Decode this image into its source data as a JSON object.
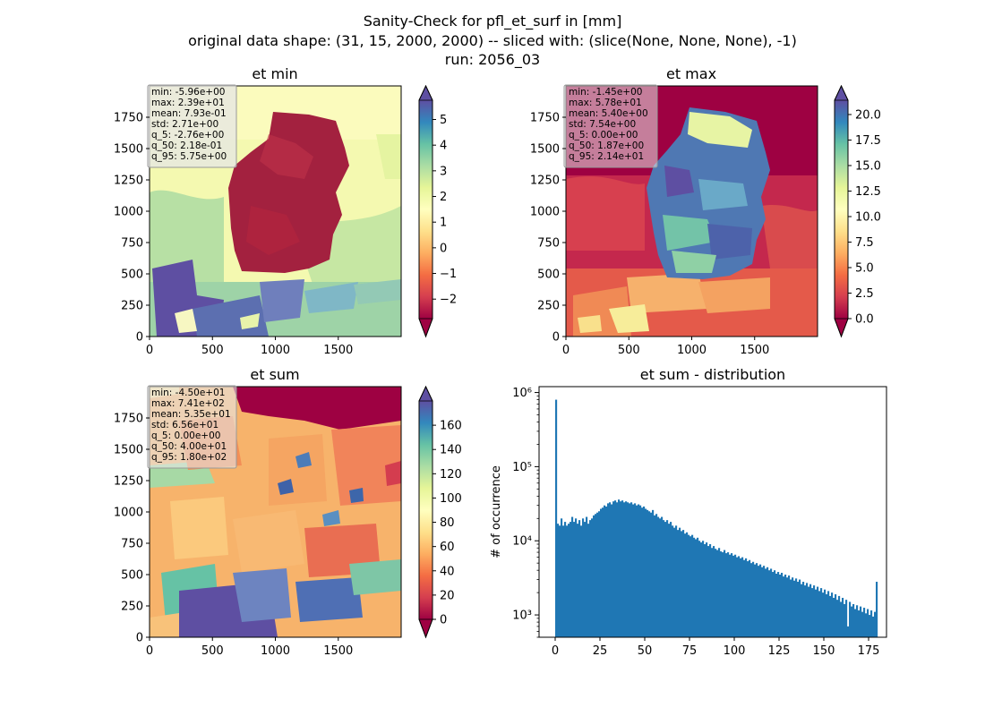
{
  "figure": {
    "suptitle_lines": [
      "Sanity-Check for pfl_et_surf in [mm]",
      "original data shape: (31, 15, 2000, 2000) -- sliced with: (slice(None, None, None), -1)",
      "run: 2056_03"
    ]
  },
  "chart_data": [
    {
      "type": "heatmap",
      "title": "et min",
      "x_ticks": [
        0,
        500,
        1000,
        1500
      ],
      "y_ticks": [
        0,
        250,
        500,
        750,
        1000,
        1250,
        1500,
        1750
      ],
      "xlim": [
        0,
        2000
      ],
      "ylim": [
        0,
        2000
      ],
      "colorbar": {
        "ticks": [
          -2,
          -1,
          0,
          1,
          2,
          3,
          4,
          5
        ],
        "range": [
          -2.76,
          5.75
        ],
        "cmap": "Spectral",
        "extend": "both"
      },
      "stats": [
        "min: -5.96e+00",
        "max: 2.39e+01",
        "mean: 7.93e-01",
        "std: 2.71e+00",
        "q_5: -2.76e+00",
        "q_50: 2.18e-01",
        "q_95: 5.75e+00"
      ]
    },
    {
      "type": "heatmap",
      "title": "et max",
      "x_ticks": [
        0,
        500,
        1000,
        1500
      ],
      "y_ticks": [
        0,
        250,
        500,
        750,
        1000,
        1250,
        1500,
        1750
      ],
      "xlim": [
        0,
        2000
      ],
      "ylim": [
        0,
        2000
      ],
      "colorbar": {
        "ticks": [
          "0.0",
          "2.5",
          "5.0",
          "7.5",
          "10.0",
          "12.5",
          "15.0",
          "17.5",
          "20.0"
        ],
        "range": [
          0,
          21.4
        ],
        "cmap": "Spectral",
        "extend": "both"
      },
      "stats": [
        "min: -1.45e+00",
        "max: 5.78e+01",
        "mean: 5.40e+00",
        "std: 7.54e+00",
        "q_5: 0.00e+00",
        "q_50: 1.87e+00",
        "q_95: 2.14e+01"
      ]
    },
    {
      "type": "heatmap",
      "title": "et sum",
      "x_ticks": [
        0,
        500,
        1000,
        1500
      ],
      "y_ticks": [
        0,
        250,
        500,
        750,
        1000,
        1250,
        1500,
        1750
      ],
      "xlim": [
        0,
        2000
      ],
      "ylim": [
        0,
        2000
      ],
      "colorbar": {
        "ticks": [
          0,
          20,
          40,
          60,
          80,
          100,
          120,
          140,
          160
        ],
        "range": [
          0,
          180
        ],
        "cmap": "Spectral",
        "extend": "both"
      },
      "stats": [
        "min: -4.50e+01",
        "max: 7.41e+02",
        "mean: 5.35e+01",
        "std: 6.56e+01",
        "q_5: 0.00e+00",
        "q_50: 4.00e+01",
        "q_95: 1.80e+02"
      ]
    },
    {
      "type": "bar",
      "title": "et sum - distribution",
      "ylabel": "# of occurrence",
      "y_scale": "log",
      "x_ticks": [
        0,
        25,
        50,
        75,
        100,
        125,
        150,
        175
      ],
      "y_ticks": [
        "10³",
        "10⁴",
        "10⁵",
        "10⁶"
      ],
      "xlim": [
        -9,
        185
      ],
      "ylim": [
        500,
        1200000
      ],
      "bar_color": "#1f77b4",
      "bin_width": 1,
      "bins": [
        [
          0,
          800000
        ],
        [
          1,
          17000
        ],
        [
          2,
          16000
        ],
        [
          3,
          20000
        ],
        [
          4,
          16000
        ],
        [
          5,
          18000
        ],
        [
          6,
          16000
        ],
        [
          7,
          17000
        ],
        [
          8,
          18000
        ],
        [
          9,
          21000
        ],
        [
          10,
          18000
        ],
        [
          11,
          20000
        ],
        [
          12,
          17000
        ],
        [
          13,
          19000
        ],
        [
          14,
          16000
        ],
        [
          15,
          20000
        ],
        [
          16,
          18000
        ],
        [
          17,
          21000
        ],
        [
          18,
          17000
        ],
        [
          19,
          19000
        ],
        [
          20,
          20000
        ],
        [
          21,
          22000
        ],
        [
          22,
          23000
        ],
        [
          23,
          24000
        ],
        [
          24,
          25000
        ],
        [
          25,
          27000
        ],
        [
          26,
          28000
        ],
        [
          27,
          30000
        ],
        [
          28,
          29000
        ],
        [
          29,
          32000
        ],
        [
          30,
          33000
        ],
        [
          31,
          31000
        ],
        [
          32,
          34000
        ],
        [
          33,
          35000
        ],
        [
          34,
          33000
        ],
        [
          35,
          36000
        ],
        [
          36,
          34000
        ],
        [
          37,
          35000
        ],
        [
          38,
          33000
        ],
        [
          39,
          34000
        ],
        [
          40,
          33000
        ],
        [
          41,
          32000
        ],
        [
          42,
          33000
        ],
        [
          43,
          31000
        ],
        [
          44,
          32000
        ],
        [
          45,
          30000
        ],
        [
          46,
          31000
        ],
        [
          47,
          30000
        ],
        [
          48,
          28000
        ],
        [
          49,
          29000
        ],
        [
          50,
          27000
        ],
        [
          51,
          26000
        ],
        [
          52,
          25000
        ],
        [
          53,
          24000
        ],
        [
          54,
          26000
        ],
        [
          55,
          22000
        ],
        [
          56,
          23000
        ],
        [
          57,
          21000
        ],
        [
          58,
          20000
        ],
        [
          59,
          21000
        ],
        [
          60,
          19000
        ],
        [
          61,
          18000
        ],
        [
          62,
          19000
        ],
        [
          63,
          17000
        ],
        [
          64,
          18000
        ],
        [
          65,
          16000
        ],
        [
          66,
          15000
        ],
        [
          67,
          16000
        ],
        [
          68,
          14000
        ],
        [
          69,
          15000
        ],
        [
          70,
          13500
        ],
        [
          71,
          14000
        ],
        [
          72,
          12500
        ],
        [
          73,
          13000
        ],
        [
          74,
          12000
        ],
        [
          75,
          11500
        ],
        [
          76,
          12000
        ],
        [
          77,
          11000
        ],
        [
          78,
          10500
        ],
        [
          79,
          11000
        ],
        [
          80,
          10000
        ],
        [
          81,
          9500
        ],
        [
          82,
          10000
        ],
        [
          83,
          9000
        ],
        [
          84,
          9500
        ],
        [
          85,
          8500
        ],
        [
          86,
          9000
        ],
        [
          87,
          8000
        ],
        [
          88,
          8500
        ],
        [
          89,
          7800
        ],
        [
          90,
          7500
        ],
        [
          91,
          8000
        ],
        [
          92,
          7200
        ],
        [
          93,
          7000
        ],
        [
          94,
          7500
        ],
        [
          95,
          6800
        ],
        [
          96,
          7000
        ],
        [
          97,
          6500
        ],
        [
          98,
          6800
        ],
        [
          99,
          6300
        ],
        [
          100,
          6500
        ],
        [
          101,
          6000
        ],
        [
          102,
          6200
        ],
        [
          103,
          5800
        ],
        [
          104,
          6000
        ],
        [
          105,
          5500
        ],
        [
          106,
          5800
        ],
        [
          107,
          5300
        ],
        [
          108,
          5500
        ],
        [
          109,
          5000
        ],
        [
          110,
          5200
        ],
        [
          111,
          4800
        ],
        [
          112,
          5000
        ],
        [
          113,
          4600
        ],
        [
          114,
          4800
        ],
        [
          115,
          4400
        ],
        [
          116,
          4600
        ],
        [
          117,
          4200
        ],
        [
          118,
          4400
        ],
        [
          119,
          4000
        ],
        [
          120,
          4200
        ],
        [
          121,
          3800
        ],
        [
          122,
          4000
        ],
        [
          123,
          3600
        ],
        [
          124,
          3800
        ],
        [
          125,
          3500
        ],
        [
          126,
          3700
        ],
        [
          127,
          3300
        ],
        [
          128,
          3500
        ],
        [
          129,
          3200
        ],
        [
          130,
          3400
        ],
        [
          131,
          3000
        ],
        [
          132,
          3200
        ],
        [
          133,
          2900
        ],
        [
          134,
          3100
        ],
        [
          135,
          2800
        ],
        [
          136,
          3000
        ],
        [
          137,
          2600
        ],
        [
          138,
          2800
        ],
        [
          139,
          2500
        ],
        [
          140,
          2700
        ],
        [
          141,
          2400
        ],
        [
          142,
          2600
        ],
        [
          143,
          2300
        ],
        [
          144,
          2500
        ],
        [
          145,
          2200
        ],
        [
          146,
          2400
        ],
        [
          147,
          2100
        ],
        [
          148,
          2300
        ],
        [
          149,
          2000
        ],
        [
          150,
          2200
        ],
        [
          151,
          1900
        ],
        [
          152,
          2100
        ],
        [
          153,
          1800
        ],
        [
          154,
          2000
        ],
        [
          155,
          1700
        ],
        [
          156,
          1900
        ],
        [
          157,
          1600
        ],
        [
          158,
          1800
        ],
        [
          159,
          1500
        ],
        [
          160,
          1700
        ],
        [
          161,
          1400
        ],
        [
          162,
          1600
        ],
        [
          163,
          700
        ],
        [
          164,
          1500
        ],
        [
          165,
          1300
        ],
        [
          166,
          1400
        ],
        [
          167,
          1200
        ],
        [
          168,
          1350
        ],
        [
          169,
          1150
        ],
        [
          170,
          1300
        ],
        [
          171,
          1100
        ],
        [
          172,
          1250
        ],
        [
          173,
          1050
        ],
        [
          174,
          1200
        ],
        [
          175,
          1000
        ],
        [
          176,
          1150
        ],
        [
          177,
          950
        ],
        [
          178,
          1100
        ],
        [
          179,
          2800
        ]
      ]
    }
  ]
}
